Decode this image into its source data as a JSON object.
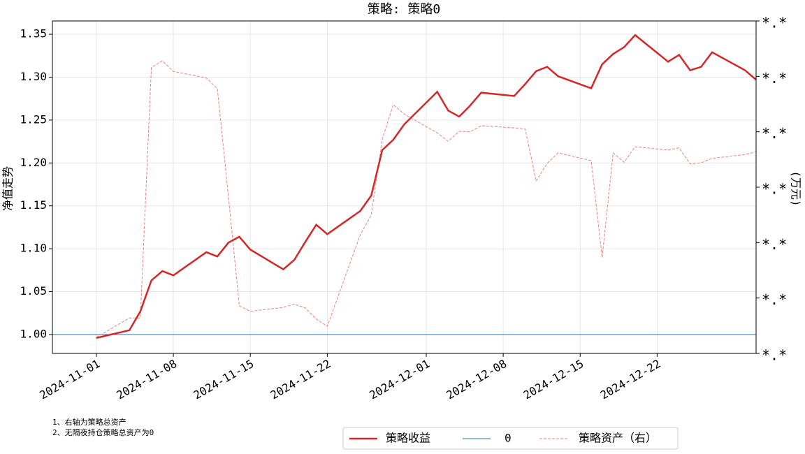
{
  "chart_data": {
    "type": "line",
    "title": "策略: 策略0",
    "y_label": "净值走势",
    "y2_label": "(万元)",
    "notes": [
      "1、右轴为策略总资产",
      "2、无隔夜持仓策略总资产为0"
    ],
    "x": [
      "2024-11-01",
      "2024-11-04",
      "2024-11-05",
      "2024-11-06",
      "2024-11-07",
      "2024-11-08",
      "2024-11-11",
      "2024-11-12",
      "2024-11-13",
      "2024-11-14",
      "2024-11-15",
      "2024-11-18",
      "2024-11-19",
      "2024-11-20",
      "2024-11-21",
      "2024-11-22",
      "2024-11-25",
      "2024-11-26",
      "2024-11-27",
      "2024-11-28",
      "2024-11-29",
      "2024-12-02",
      "2024-12-03",
      "2024-12-04",
      "2024-12-05",
      "2024-12-06",
      "2024-12-09",
      "2024-12-10",
      "2024-12-11",
      "2024-12-12",
      "2024-12-13",
      "2024-12-16",
      "2024-12-17",
      "2024-12-18",
      "2024-12-19",
      "2024-12-20",
      "2024-12-23",
      "2024-12-24",
      "2024-12-25",
      "2024-12-26",
      "2024-12-27",
      "2024-12-30",
      "2024-12-31"
    ],
    "xlim": [
      "2024-10-28",
      "2024-12-31"
    ],
    "xticks": [
      "2024-11-01",
      "2024-11-08",
      "2024-11-15",
      "2024-11-22",
      "2024-12-01",
      "2024-12-08",
      "2024-12-15",
      "2024-12-22"
    ],
    "ylim": [
      0.978,
      1.3655
    ],
    "yticks": [
      {
        "value": 1,
        "label": "1.00"
      },
      1.05,
      {
        "value": 1.1,
        "label": "1.10"
      },
      1.15,
      {
        "value": 1.2,
        "label": "1.20"
      },
      1.25,
      {
        "value": 1.3,
        "label": "1.30"
      },
      1.35
    ],
    "y2lim": [
      0,
      6
    ],
    "y2ticks": [
      {
        "value": 0,
        "label": "*.*"
      },
      {
        "value": 1,
        "label": "*.*"
      },
      {
        "value": 2,
        "label": "*.*"
      },
      {
        "value": 3,
        "label": "*.*"
      },
      {
        "value": 4,
        "label": "*.*"
      },
      {
        "value": 5,
        "label": "*.*"
      },
      {
        "value": 6,
        "label": "*.*"
      }
    ],
    "grid": true,
    "hline": {
      "name": "0",
      "value": 1,
      "color": "#1f77b4"
    },
    "series": [
      {
        "name": "策略收益",
        "color": "#d62728",
        "style": "solid",
        "values": [
          0.996,
          1.005,
          1.027,
          1.063,
          1.074,
          1.069,
          1.096,
          1.091,
          1.107,
          1.114,
          1.099,
          1.076,
          1.087,
          1.108,
          1.128,
          1.117,
          1.144,
          1.162,
          1.215,
          1.227,
          1.245,
          1.283,
          1.261,
          1.254,
          1.267,
          1.282,
          1.278,
          1.292,
          1.307,
          1.312,
          1.301,
          1.287,
          1.315,
          1.327,
          1.335,
          1.349,
          1.318,
          1.326,
          1.308,
          1.312,
          1.329,
          1.308,
          1.297
        ]
      },
      {
        "name": "策略资产（右）",
        "color": "#f08080",
        "style": "dashed",
        "axis": "y2",
        "values": [
          0.29,
          0.64,
          0.64,
          5.16,
          5.28,
          5.09,
          4.97,
          4.78,
          2.85,
          0.86,
          0.76,
          0.83,
          0.89,
          0.82,
          0.62,
          0.49,
          2.14,
          2.5,
          3.86,
          4.49,
          4.32,
          3.98,
          3.83,
          4.01,
          4.0,
          4.11,
          4.07,
          4.05,
          3.11,
          3.43,
          3.62,
          3.48,
          1.73,
          3.62,
          3.45,
          3.73,
          3.67,
          3.71,
          3.42,
          3.44,
          3.52,
          3.59,
          3.64
        ]
      }
    ]
  }
}
